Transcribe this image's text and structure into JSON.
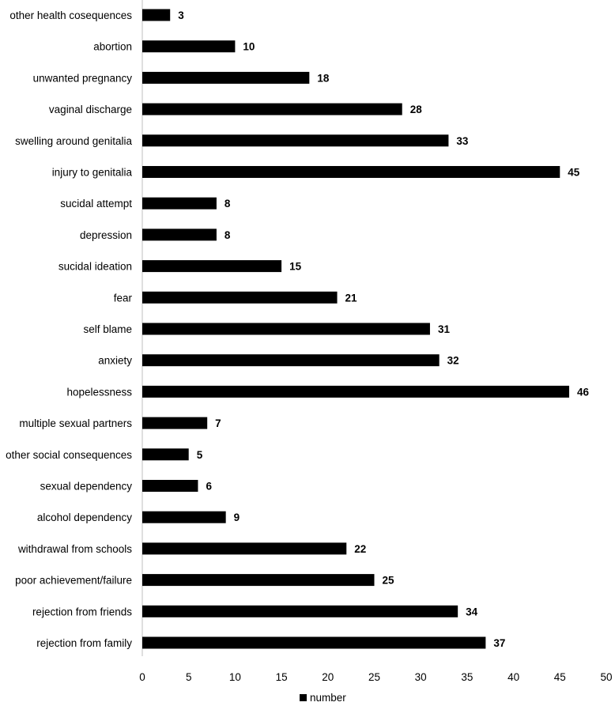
{
  "chart_data": {
    "type": "bar",
    "orientation": "horizontal",
    "categories": [
      "other health cosequences",
      "abortion",
      "unwanted pregnancy",
      "vaginal discharge",
      "swelling around genitalia",
      "injury to genitalia",
      "sucidal attempt",
      "depression",
      "sucidal ideation",
      "fear",
      "self blame",
      "anxiety",
      "hopelessness",
      "multiple sexual partners",
      "other social consequences",
      "sexual dependency",
      "alcohol dependency",
      "withdrawal from schools",
      "poor achievement/failure",
      "rejection from friends",
      "rejection from family"
    ],
    "series": [
      {
        "name": "number",
        "values": [
          3,
          10,
          18,
          28,
          33,
          45,
          8,
          8,
          15,
          21,
          31,
          32,
          46,
          7,
          5,
          6,
          9,
          22,
          25,
          34,
          37
        ]
      }
    ],
    "xlim": [
      0,
      50
    ],
    "xticks": [
      0,
      5,
      10,
      15,
      20,
      25,
      30,
      35,
      40,
      45,
      50
    ],
    "grid": false,
    "legend": "bottom",
    "bar_color": "#000000",
    "axis_color": "#bfbfbf"
  }
}
